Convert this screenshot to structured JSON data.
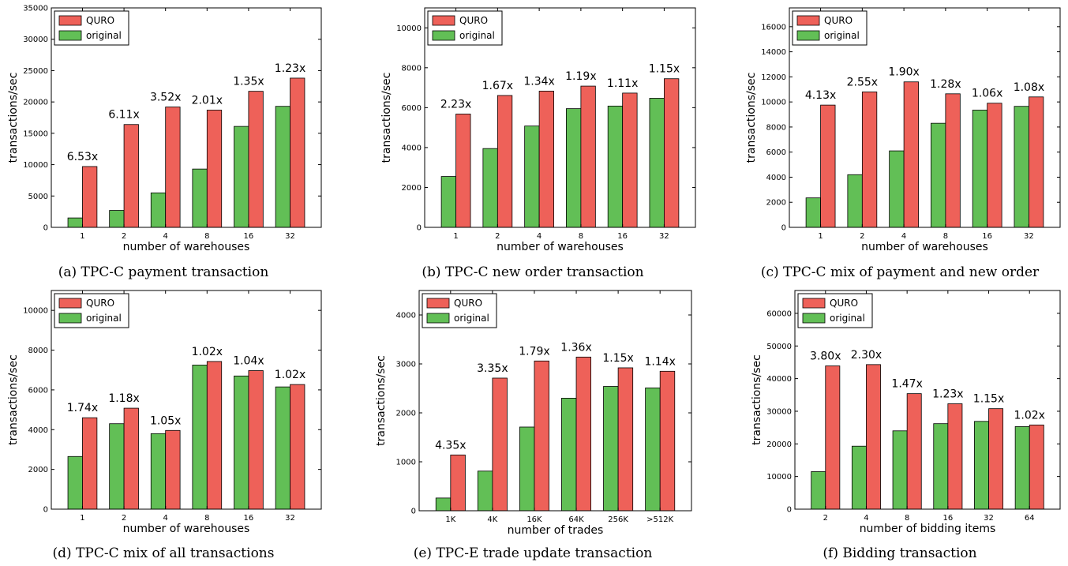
{
  "colors": {
    "quro": "#ee6159",
    "original": "#62bf56",
    "edge": "#000000"
  },
  "legend": [
    "QURO",
    "original"
  ],
  "chart_data": [
    {
      "type": "bar",
      "caption": "(a) TPC-C payment transaction",
      "xlabel": "number of warehouses",
      "ylabel": "transactions/sec",
      "categories": [
        "1",
        "2",
        "4",
        "8",
        "16",
        "32"
      ],
      "ylim": [
        0,
        35000
      ],
      "yticks": [
        0,
        5000,
        10000,
        15000,
        20000,
        25000,
        30000,
        35000
      ],
      "series": [
        {
          "name": "original",
          "values": [
            1500,
            2700,
            5500,
            9300,
            16100,
            19300
          ]
        },
        {
          "name": "QURO",
          "values": [
            9700,
            16400,
            19200,
            18700,
            21700,
            23800
          ]
        }
      ],
      "ratios": [
        "6.53x",
        "6.11x",
        "3.52x",
        "2.01x",
        "1.35x",
        "1.23x"
      ]
    },
    {
      "type": "bar",
      "caption": "(b) TPC-C new order transaction",
      "xlabel": "number of warehouses",
      "ylabel": "transactions/sec",
      "categories": [
        "1",
        "2",
        "4",
        "8",
        "16",
        "32"
      ],
      "ylim": [
        0,
        11000
      ],
      "yticks": [
        0,
        2000,
        4000,
        6000,
        8000,
        10000
      ],
      "series": [
        {
          "name": "original",
          "values": [
            2550,
            3950,
            5080,
            5950,
            6080,
            6470
          ]
        },
        {
          "name": "QURO",
          "values": [
            5680,
            6610,
            6830,
            7080,
            6730,
            7450
          ]
        }
      ],
      "ratios": [
        "2.23x",
        "1.67x",
        "1.34x",
        "1.19x",
        "1.11x",
        "1.15x"
      ]
    },
    {
      "type": "bar",
      "caption": "(c) TPC-C mix of payment and new order",
      "xlabel": "number of warehouses",
      "ylabel": "transactions/sec",
      "categories": [
        "1",
        "2",
        "4",
        "8",
        "16",
        "32"
      ],
      "ylim": [
        0,
        17500
      ],
      "yticks": [
        0,
        2000,
        4000,
        6000,
        8000,
        10000,
        12000,
        14000,
        16000
      ],
      "series": [
        {
          "name": "original",
          "values": [
            2350,
            4200,
            6100,
            8300,
            9350,
            9650
          ]
        },
        {
          "name": "QURO",
          "values": [
            9750,
            10800,
            11600,
            10650,
            9900,
            10400
          ]
        }
      ],
      "ratios": [
        "4.13x",
        "2.55x",
        "1.90x",
        "1.28x",
        "1.06x",
        "1.08x"
      ]
    },
    {
      "type": "bar",
      "caption": "(d) TPC-C mix of all transactions",
      "xlabel": "number of warehouses",
      "ylabel": "transactions/sec",
      "categories": [
        "1",
        "2",
        "4",
        "8",
        "16",
        "32"
      ],
      "ylim": [
        0,
        11000
      ],
      "yticks": [
        0,
        2000,
        4000,
        6000,
        8000,
        10000
      ],
      "series": [
        {
          "name": "original",
          "values": [
            2650,
            4300,
            3800,
            7250,
            6700,
            6150
          ]
        },
        {
          "name": "QURO",
          "values": [
            4600,
            5080,
            3960,
            7430,
            6970,
            6270
          ]
        }
      ],
      "ratios": [
        "1.74x",
        "1.18x",
        "1.05x",
        "1.02x",
        "1.04x",
        "1.02x"
      ]
    },
    {
      "type": "bar",
      "caption": "(e) TPC-E trade update transaction",
      "xlabel": "number of trades",
      "ylabel": "transactions/sec",
      "categories": [
        "1K",
        "4K",
        "16K",
        "64K",
        "256K",
        ">512K"
      ],
      "ylim": [
        0,
        4500
      ],
      "yticks": [
        0,
        1000,
        2000,
        3000,
        4000
      ],
      "series": [
        {
          "name": "original",
          "values": [
            260,
            810,
            1710,
            2300,
            2540,
            2510
          ]
        },
        {
          "name": "QURO",
          "values": [
            1140,
            2710,
            3060,
            3140,
            2920,
            2850
          ]
        }
      ],
      "ratios": [
        "4.35x",
        "3.35x",
        "1.79x",
        "1.36x",
        "1.15x",
        "1.14x"
      ]
    },
    {
      "type": "bar",
      "caption": "(f) Bidding transaction",
      "xlabel": "number of bidding items",
      "ylabel": "transactions/sec",
      "categories": [
        "2",
        "4",
        "8",
        "16",
        "32",
        "64"
      ],
      "ylim": [
        0,
        67000
      ],
      "yticks": [
        0,
        10000,
        20000,
        30000,
        40000,
        50000,
        60000
      ],
      "series": [
        {
          "name": "original",
          "values": [
            11500,
            19300,
            24000,
            26200,
            26900,
            25300
          ]
        },
        {
          "name": "QURO",
          "values": [
            43900,
            44300,
            35400,
            32300,
            30800,
            25800
          ]
        }
      ],
      "ratios": [
        "3.80x",
        "2.30x",
        "1.47x",
        "1.23x",
        "1.15x",
        "1.02x"
      ]
    }
  ]
}
